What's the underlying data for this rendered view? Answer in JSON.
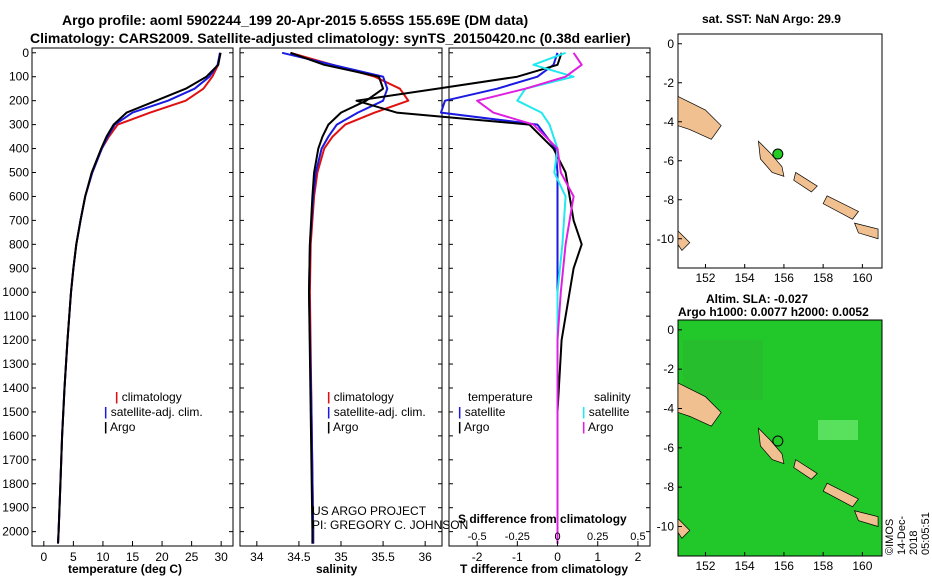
{
  "header": {
    "line1": "Argo profile: aoml 5902244_199 20-Apr-2015 5.655S 155.69E (DM data)",
    "line2": "Climatology: CARS2009. Satellite-adjusted climatology: synTS_20150420.nc (0.38d earlier)"
  },
  "colors": {
    "climatology": "#e01010",
    "satellite": "#1a1ae0",
    "argo": "#000000",
    "satellite_salinity": "#22e8f0",
    "climatology_salinity": "#e020e0",
    "land": "#f0c090",
    "ocean_map_bg": "#22c82a",
    "marker_green": "#22cc22"
  },
  "chart_data": [
    {
      "type": "line",
      "panel": "temperature",
      "xlabel": "temperature (deg C)",
      "xticks": [
        "0",
        "5",
        "10",
        "15",
        "20",
        "25",
        "30"
      ],
      "xlim": [
        -2,
        32
      ],
      "ylim": [
        2060,
        0
      ],
      "yticks": [
        "0",
        "100",
        "200",
        "300",
        "400",
        "500",
        "600",
        "700",
        "800",
        "900",
        "1000",
        "1100",
        "1200",
        "1300",
        "1400",
        "1500",
        "1600",
        "1700",
        "1800",
        "1900",
        "2000"
      ],
      "legend": [
        "climatology",
        "satellite-adj. clim.",
        "Argo"
      ],
      "series": [
        {
          "name": "climatology",
          "depth": [
            0,
            50,
            100,
            150,
            200,
            250,
            300,
            350,
            400,
            500,
            600,
            700,
            800,
            900,
            1000,
            1200,
            1400,
            1600,
            1800,
            2000,
            2050
          ],
          "values": [
            29.8,
            29.5,
            28.5,
            27,
            24,
            18,
            12.5,
            11,
            9.8,
            8.2,
            7,
            6.2,
            5.5,
            5,
            4.6,
            4,
            3.5,
            3.1,
            2.8,
            2.5,
            2.4
          ]
        },
        {
          "name": "satellite-adj. clim.",
          "depth": [
            0,
            50,
            100,
            150,
            200,
            250,
            300,
            350,
            400,
            500,
            600,
            700,
            800,
            900,
            1000,
            1200,
            1400,
            1600,
            1800,
            2000,
            2050
          ],
          "values": [
            29.8,
            29.4,
            28,
            25.5,
            21,
            15,
            12,
            10.8,
            9.8,
            8.2,
            7,
            6.2,
            5.5,
            5,
            4.6,
            4,
            3.5,
            3.1,
            2.8,
            2.5,
            2.4
          ]
        },
        {
          "name": "Argo",
          "depth": [
            0,
            50,
            100,
            150,
            200,
            250,
            300,
            350,
            400,
            500,
            600,
            700,
            800,
            900,
            1000,
            1200,
            1400,
            1600,
            1800,
            2000,
            2050
          ],
          "values": [
            29.9,
            29.5,
            27.5,
            24,
            19,
            14,
            11.8,
            10.6,
            9.7,
            8.1,
            7,
            6.2,
            5.5,
            5,
            4.6,
            4,
            3.5,
            3.1,
            2.8,
            2.5,
            2.4
          ]
        }
      ]
    },
    {
      "type": "line",
      "panel": "salinity",
      "xlabel": "salinity",
      "xticks": [
        "34",
        "34.5",
        "35",
        "35.5",
        "36"
      ],
      "xlim": [
        33.8,
        36.2
      ],
      "ylim": [
        2060,
        0
      ],
      "series": [
        {
          "name": "climatology",
          "depth": [
            0,
            50,
            100,
            150,
            200,
            250,
            300,
            350,
            400,
            500,
            600,
            800,
            1000,
            1500,
            2000,
            2050
          ],
          "values": [
            34.4,
            34.9,
            35.4,
            35.7,
            35.8,
            35.4,
            35.05,
            34.9,
            34.8,
            34.72,
            34.68,
            34.64,
            34.63,
            34.65,
            34.67,
            34.67
          ]
        },
        {
          "name": "satellite-adj. clim.",
          "depth": [
            0,
            50,
            100,
            150,
            200,
            250,
            300,
            350,
            400,
            500,
            600,
            800,
            1000,
            1500,
            2000,
            2050
          ],
          "values": [
            34.3,
            34.9,
            35.5,
            35.55,
            35.5,
            35.2,
            34.95,
            34.85,
            34.77,
            34.7,
            34.67,
            34.63,
            34.62,
            34.65,
            34.67,
            34.67
          ]
        },
        {
          "name": "Argo",
          "depth": [
            0,
            50,
            100,
            150,
            200,
            250,
            300,
            350,
            400,
            500,
            600,
            800,
            1000,
            1500,
            2000,
            2050
          ],
          "values": [
            34.4,
            34.8,
            35.45,
            35.5,
            35.3,
            35.0,
            34.85,
            34.78,
            34.73,
            34.68,
            34.66,
            34.63,
            34.62,
            34.64,
            34.66,
            34.66
          ]
        }
      ]
    },
    {
      "type": "line",
      "panel": "difference",
      "xlabel": "T difference from climatology",
      "xticks": [
        "-2",
        "-1",
        "0",
        "1",
        "2"
      ],
      "xlim": [
        -2.7,
        2.3
      ],
      "top_xlabel": "S difference from climatology",
      "top_xticks": [
        "-0.5",
        "-0.25",
        "0",
        "0.25",
        "0.5"
      ],
      "ylim": [
        2060,
        0
      ],
      "legend_temperature": {
        "title": "temperature",
        "items": [
          "satellite",
          "Argo"
        ]
      },
      "legend_salinity": {
        "title": "salinity",
        "items": [
          "satellite",
          "Argo"
        ]
      },
      "series": [
        {
          "name": "temperature satellite",
          "depth": [
            0,
            50,
            100,
            150,
            200,
            250,
            300,
            400,
            500,
            600,
            700,
            800,
            1000,
            1200,
            1500,
            2000,
            2050
          ],
          "values": [
            0,
            -0.1,
            -0.5,
            -1.5,
            -2.8,
            -2.9,
            -0.5,
            -0.05,
            0,
            0,
            0,
            0,
            0,
            0,
            0,
            0,
            0
          ]
        },
        {
          "name": "temperature Argo",
          "depth": [
            0,
            50,
            100,
            150,
            200,
            250,
            300,
            400,
            500,
            600,
            700,
            800,
            900,
            1000,
            1200,
            1500,
            2000,
            2050
          ],
          "values": [
            0.1,
            0,
            -1.0,
            -3.0,
            -5,
            -4,
            -0.7,
            -0.1,
            0.2,
            0.3,
            0.4,
            0.6,
            0.4,
            0.3,
            0.1,
            0,
            0,
            0
          ]
        },
        {
          "name": "salinity satellite",
          "depth": [
            0,
            50,
            100,
            150,
            200,
            250,
            300,
            400,
            500,
            600,
            800,
            1000,
            1200,
            1500,
            2000,
            2050
          ],
          "values": [
            0.05,
            -0.15,
            0.1,
            -0.2,
            -0.25,
            -0.1,
            -0.05,
            0,
            -0.02,
            0.05,
            0.03,
            0,
            0,
            0,
            0,
            0
          ]
        },
        {
          "name": "salinity Argo",
          "depth": [
            0,
            50,
            100,
            150,
            200,
            250,
            300,
            400,
            500,
            600,
            800,
            1000,
            1200,
            1500,
            2000,
            2050
          ],
          "values": [
            0.1,
            0.15,
            0.05,
            -0.2,
            -0.5,
            -0.4,
            -0.15,
            0,
            0.02,
            0.1,
            0.05,
            0.02,
            0,
            0,
            0,
            0
          ]
        }
      ]
    }
  ],
  "map_top": {
    "title": "sat. SST: NaN Argo: 29.9",
    "xticks": [
      "152",
      "154",
      "156",
      "158",
      "160"
    ],
    "yticks": [
      "0",
      "-2",
      "-4",
      "-6",
      "-8",
      "-10"
    ]
  },
  "map_bottom": {
    "title1": "Altim. SLA: -0.027",
    "title2": "Argo h1000: 0.0077 h2000: 0.0052",
    "xticks": [
      "152",
      "154",
      "156",
      "158",
      "160"
    ],
    "yticks": [
      "0",
      "-2",
      "-4",
      "-6",
      "-8",
      "-10"
    ]
  },
  "footer": {
    "project": "US ARGO PROJECT",
    "pi": "PI: GREGORY C. JOHNSON",
    "stamp": "©IMOS 14-Dec-2018 05:05:51"
  }
}
